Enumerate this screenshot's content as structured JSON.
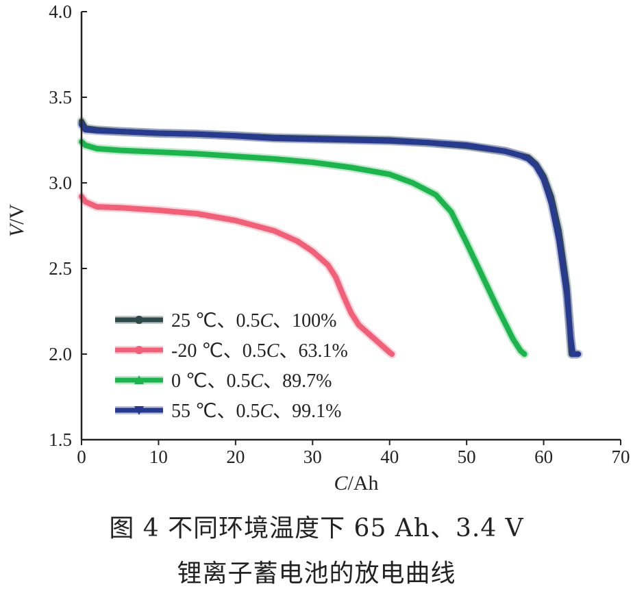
{
  "chart_data": {
    "type": "line",
    "xlabel_italic": "C",
    "xlabel_unit": "/Ah",
    "ylabel_italic": "V",
    "ylabel_unit": "/V",
    "xlim": [
      0,
      70
    ],
    "ylim": [
      1.5,
      4.0
    ],
    "x_ticks": [
      "0",
      "10",
      "20",
      "30",
      "40",
      "50",
      "60",
      "70"
    ],
    "y_ticks": [
      "1.5",
      "2.0",
      "2.5",
      "3.0",
      "3.5",
      "4.0"
    ],
    "grid": false,
    "legend_position": "lower-left",
    "series": [
      {
        "legend_a": "25 ℃、0.5",
        "legend_c": "C",
        "legend_b": "、100%",
        "color": "#2f4a4a",
        "marker": "circle",
        "points": [
          [
            0,
            3.36
          ],
          [
            0.5,
            3.32
          ],
          [
            2,
            3.31
          ],
          [
            5,
            3.3
          ],
          [
            10,
            3.29
          ],
          [
            15,
            3.285
          ],
          [
            20,
            3.275
          ],
          [
            25,
            3.265
          ],
          [
            30,
            3.26
          ],
          [
            35,
            3.255
          ],
          [
            40,
            3.25
          ],
          [
            45,
            3.235
          ],
          [
            50,
            3.215
          ],
          [
            55,
            3.185
          ],
          [
            57,
            3.16
          ],
          [
            58,
            3.15
          ],
          [
            59,
            3.11
          ],
          [
            60,
            3.04
          ],
          [
            61,
            2.92
          ],
          [
            62,
            2.72
          ],
          [
            63,
            2.4
          ],
          [
            63.4,
            2.15
          ],
          [
            63.6,
            2.0
          ],
          [
            64.2,
            2.0
          ]
        ]
      },
      {
        "legend_a": "-20 ℃、0.5",
        "legend_c": "C",
        "legend_b": "、63.1%",
        "color": "#f06078",
        "marker": "circle",
        "points": [
          [
            0,
            2.92
          ],
          [
            0.5,
            2.89
          ],
          [
            2,
            2.86
          ],
          [
            5,
            2.855
          ],
          [
            10,
            2.84
          ],
          [
            15,
            2.82
          ],
          [
            20,
            2.78
          ],
          [
            25,
            2.72
          ],
          [
            28,
            2.66
          ],
          [
            30,
            2.6
          ],
          [
            32,
            2.52
          ],
          [
            33,
            2.45
          ],
          [
            34,
            2.34
          ],
          [
            35,
            2.24
          ],
          [
            36,
            2.17
          ],
          [
            37,
            2.13
          ],
          [
            38,
            2.09
          ],
          [
            39,
            2.05
          ],
          [
            40,
            2.01
          ],
          [
            40.3,
            2.0
          ]
        ]
      },
      {
        "legend_a": "0 ℃、0.5",
        "legend_c": "C",
        "legend_b": "、89.7%",
        "color": "#1db34d",
        "marker": "triangle-up",
        "points": [
          [
            0,
            3.24
          ],
          [
            0.5,
            3.22
          ],
          [
            2,
            3.2
          ],
          [
            5,
            3.19
          ],
          [
            10,
            3.18
          ],
          [
            15,
            3.17
          ],
          [
            20,
            3.155
          ],
          [
            25,
            3.14
          ],
          [
            30,
            3.12
          ],
          [
            35,
            3.09
          ],
          [
            40,
            3.05
          ],
          [
            43,
            3.0
          ],
          [
            46,
            2.93
          ],
          [
            48,
            2.83
          ],
          [
            50,
            2.65
          ],
          [
            52,
            2.46
          ],
          [
            54,
            2.27
          ],
          [
            56,
            2.09
          ],
          [
            57,
            2.02
          ],
          [
            57.5,
            2.0
          ]
        ]
      },
      {
        "legend_a": "55 ℃、0.5",
        "legend_c": "C",
        "legend_b": "、99.1%",
        "color": "#283a8e",
        "marker": "triangle-down",
        "points": [
          [
            0,
            3.34
          ],
          [
            0.5,
            3.31
          ],
          [
            2,
            3.305
          ],
          [
            5,
            3.3
          ],
          [
            10,
            3.29
          ],
          [
            15,
            3.285
          ],
          [
            20,
            3.275
          ],
          [
            25,
            3.26
          ],
          [
            30,
            3.255
          ],
          [
            35,
            3.25
          ],
          [
            40,
            3.245
          ],
          [
            45,
            3.235
          ],
          [
            50,
            3.22
          ],
          [
            55,
            3.185
          ],
          [
            57,
            3.16
          ],
          [
            58,
            3.14
          ],
          [
            59,
            3.1
          ],
          [
            60,
            3.02
          ],
          [
            61,
            2.88
          ],
          [
            62,
            2.66
          ],
          [
            63,
            2.35
          ],
          [
            63.5,
            2.1
          ],
          [
            63.8,
            2.0
          ],
          [
            64.5,
            2.0
          ]
        ]
      }
    ]
  },
  "caption": {
    "line1": "图 4  不同环境温度下 65 Ah、3.4 V",
    "line2": "锂离子蓄电池的放电曲线"
  }
}
